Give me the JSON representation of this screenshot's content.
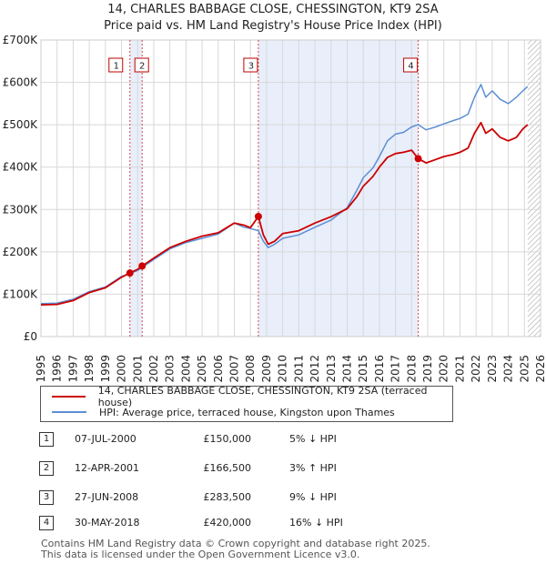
{
  "title_line1": "14, CHARLES BABBAGE CLOSE, CHESSINGTON, KT9 2SA",
  "title_line2": "Price paid vs. HM Land Registry's House Price Index (HPI)",
  "colors": {
    "price_paid": "#cc0000",
    "hpi": "#5b8fd4",
    "shade": "#e8eefa",
    "grid": "#d8d8d8",
    "hatch": "#999999"
  },
  "chart_data": {
    "type": "line",
    "x_range": [
      1995,
      2026
    ],
    "y_range": [
      0,
      700000
    ],
    "y_ticks": [
      {
        "value": 0,
        "label": "£0"
      },
      {
        "value": 100000,
        "label": "£100K"
      },
      {
        "value": 200000,
        "label": "£200K"
      },
      {
        "value": 300000,
        "label": "£300K"
      },
      {
        "value": 400000,
        "label": "£400K"
      },
      {
        "value": 500000,
        "label": "£500K"
      },
      {
        "value": 600000,
        "label": "£600K"
      },
      {
        "value": 700000,
        "label": "£700K"
      }
    ],
    "x_ticks": [
      "1995",
      "1996",
      "1997",
      "1998",
      "1999",
      "2000",
      "2001",
      "2002",
      "2003",
      "2004",
      "2005",
      "2006",
      "2007",
      "2008",
      "2009",
      "2010",
      "2011",
      "2012",
      "2013",
      "2014",
      "2015",
      "2016",
      "2017",
      "2018",
      "2019",
      "2020",
      "2021",
      "2022",
      "2023",
      "2024",
      "2025",
      "2026"
    ],
    "shaded_ranges": [
      [
        2000.52,
        2001.28
      ],
      [
        2008.49,
        2018.41
      ]
    ],
    "future_from": 2025.2,
    "series": [
      {
        "name": "14, CHARLES BABBAGE CLOSE, CHESSINGTON, KT9 2SA (terraced house)",
        "color": "#cc0000",
        "points": [
          [
            1995,
            75000
          ],
          [
            1996,
            76000
          ],
          [
            1997,
            85000
          ],
          [
            1998,
            104000
          ],
          [
            1999,
            115000
          ],
          [
            2000,
            140000
          ],
          [
            2000.52,
            150000
          ],
          [
            2001,
            159000
          ],
          [
            2001.28,
            166500
          ],
          [
            2002,
            185000
          ],
          [
            2003,
            210000
          ],
          [
            2004,
            225000
          ],
          [
            2005,
            237000
          ],
          [
            2006,
            245000
          ],
          [
            2007,
            268000
          ],
          [
            2007.6,
            263000
          ],
          [
            2008,
            257000
          ],
          [
            2008.49,
            283500
          ],
          [
            2008.8,
            240000
          ],
          [
            2009.1,
            218000
          ],
          [
            2009.5,
            225000
          ],
          [
            2010,
            243000
          ],
          [
            2011,
            250000
          ],
          [
            2012,
            268000
          ],
          [
            2013,
            283000
          ],
          [
            2014,
            302000
          ],
          [
            2014.6,
            330000
          ],
          [
            2015,
            355000
          ],
          [
            2015.6,
            378000
          ],
          [
            2016,
            400000
          ],
          [
            2016.5,
            423000
          ],
          [
            2017,
            432000
          ],
          [
            2017.5,
            435000
          ],
          [
            2018,
            440000
          ],
          [
            2018.41,
            420000
          ],
          [
            2018.9,
            410000
          ],
          [
            2019.5,
            418000
          ],
          [
            2020,
            425000
          ],
          [
            2020.6,
            430000
          ],
          [
            2021,
            435000
          ],
          [
            2021.5,
            445000
          ],
          [
            2021.9,
            480000
          ],
          [
            2022.3,
            505000
          ],
          [
            2022.6,
            480000
          ],
          [
            2023,
            490000
          ],
          [
            2023.5,
            470000
          ],
          [
            2024,
            462000
          ],
          [
            2024.5,
            470000
          ],
          [
            2024.9,
            490000
          ],
          [
            2025.2,
            500000
          ]
        ]
      },
      {
        "name": "HPI: Average price, terraced house, Kingston upon Thames",
        "color": "#5b8fd4",
        "points": [
          [
            1995,
            78000
          ],
          [
            1996,
            79000
          ],
          [
            1997,
            88000
          ],
          [
            1998,
            106000
          ],
          [
            1999,
            117000
          ],
          [
            2000,
            142000
          ],
          [
            2001,
            156000
          ],
          [
            2002,
            182000
          ],
          [
            2003,
            207000
          ],
          [
            2004,
            222000
          ],
          [
            2005,
            232000
          ],
          [
            2006,
            242000
          ],
          [
            2007,
            268000
          ],
          [
            2007.6,
            258000
          ],
          [
            2008,
            255000
          ],
          [
            2008.49,
            250000
          ],
          [
            2008.8,
            225000
          ],
          [
            2009.1,
            210000
          ],
          [
            2009.5,
            218000
          ],
          [
            2010,
            232000
          ],
          [
            2011,
            240000
          ],
          [
            2012,
            258000
          ],
          [
            2013,
            275000
          ],
          [
            2014,
            304000
          ],
          [
            2014.6,
            345000
          ],
          [
            2015,
            375000
          ],
          [
            2015.6,
            398000
          ],
          [
            2016,
            425000
          ],
          [
            2016.5,
            462000
          ],
          [
            2017,
            478000
          ],
          [
            2017.5,
            482000
          ],
          [
            2018,
            495000
          ],
          [
            2018.41,
            500000
          ],
          [
            2018.9,
            488000
          ],
          [
            2019.5,
            495000
          ],
          [
            2020,
            502000
          ],
          [
            2020.6,
            510000
          ],
          [
            2021,
            515000
          ],
          [
            2021.5,
            525000
          ],
          [
            2021.9,
            565000
          ],
          [
            2022.3,
            595000
          ],
          [
            2022.6,
            565000
          ],
          [
            2023,
            580000
          ],
          [
            2023.5,
            560000
          ],
          [
            2024,
            550000
          ],
          [
            2024.5,
            565000
          ],
          [
            2024.9,
            580000
          ],
          [
            2025.2,
            590000
          ]
        ]
      }
    ],
    "sales": [
      {
        "id": "1",
        "year": 2000.52,
        "price": 150000
      },
      {
        "id": "2",
        "year": 2001.28,
        "price": 166500
      },
      {
        "id": "3",
        "year": 2008.49,
        "price": 283500
      },
      {
        "id": "4",
        "year": 2018.41,
        "price": 420000
      }
    ]
  },
  "legend": [
    {
      "label": "14, CHARLES BABBAGE CLOSE, CHESSINGTON, KT9 2SA (terraced house)"
    },
    {
      "label": "HPI: Average price, terraced house, Kingston upon Thames"
    }
  ],
  "sales_table": [
    {
      "num": "1",
      "date": "07-JUL-2000",
      "price": "£150,000",
      "hpi": "5% ↓ HPI"
    },
    {
      "num": "2",
      "date": "12-APR-2001",
      "price": "£166,500",
      "hpi": "3% ↑ HPI"
    },
    {
      "num": "3",
      "date": "27-JUN-2008",
      "price": "£283,500",
      "hpi": "9% ↓ HPI"
    },
    {
      "num": "4",
      "date": "30-MAY-2018",
      "price": "£420,000",
      "hpi": "16% ↓ HPI"
    }
  ],
  "footer_line1": "Contains HM Land Registry data © Crown copyright and database right 2025.",
  "footer_line2": "This data is licensed under the Open Government Licence v3.0."
}
